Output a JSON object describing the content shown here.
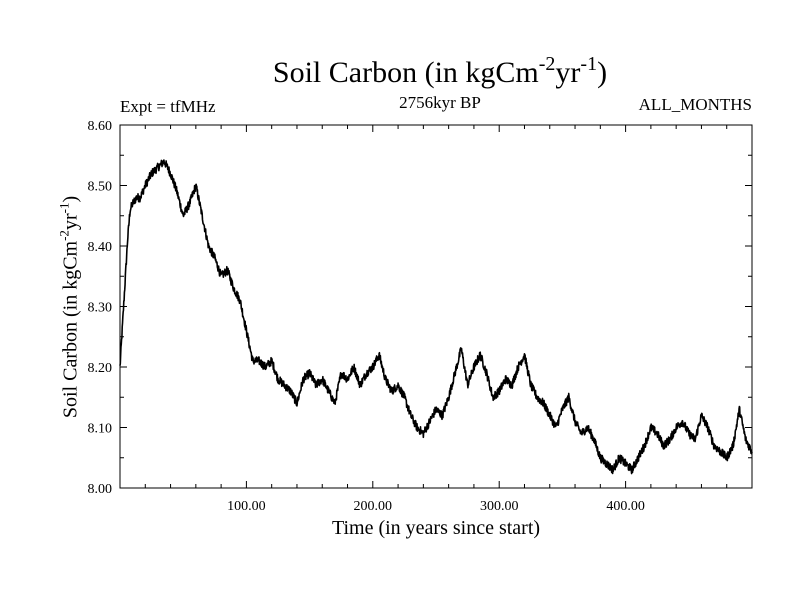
{
  "chart": {
    "title_main": "Soil Carbon (in kgCm",
    "title_sup1": "-2",
    "title_mid": "yr",
    "title_sup2": "-1",
    "title_end": ")",
    "expt_label": "Expt = tfMHz",
    "subtitle": "2756kyr BP",
    "months_label": "ALL_MONTHS",
    "xlabel": "Time (in years since start)",
    "ylabel_main": "Soil Carbon (in kgCm",
    "ylabel_sup1": "-2",
    "ylabel_mid": "yr",
    "ylabel_sup2": "-1",
    "ylabel_end": ")"
  },
  "chart_data": {
    "type": "line",
    "title": "Soil Carbon (in kgCm-2yr-1)",
    "subtitle": "2756kyr BP",
    "xlabel": "Time (in years since start)",
    "ylabel": "Soil Carbon (in kgCm-2yr-1)",
    "xlim": [
      0,
      500
    ],
    "ylim": [
      8.0,
      8.6
    ],
    "xticks": [
      100,
      200,
      300,
      400
    ],
    "xtick_labels": [
      "100.00",
      "200.00",
      "300.00",
      "400.00"
    ],
    "yticks": [
      8.0,
      8.1,
      8.2,
      8.3,
      8.4,
      8.5,
      8.6
    ],
    "ytick_labels": [
      "8.00",
      "8.10",
      "8.20",
      "8.30",
      "8.40",
      "8.50",
      "8.60"
    ],
    "grid": false,
    "series": [
      {
        "color": "#000000",
        "x": [
          0,
          2,
          4,
          6,
          8,
          10,
          13,
          16,
          20,
          25,
          30,
          35,
          40,
          45,
          50,
          55,
          60,
          65,
          70,
          75,
          80,
          85,
          90,
          95,
          100,
          105,
          110,
          115,
          120,
          125,
          130,
          135,
          140,
          145,
          150,
          155,
          160,
          165,
          170,
          175,
          180,
          185,
          190,
          195,
          200,
          205,
          210,
          215,
          220,
          225,
          230,
          235,
          240,
          245,
          250,
          255,
          260,
          265,
          270,
          275,
          280,
          285,
          290,
          295,
          300,
          305,
          310,
          315,
          320,
          325,
          330,
          335,
          340,
          345,
          350,
          355,
          360,
          365,
          370,
          375,
          380,
          385,
          390,
          395,
          400,
          405,
          410,
          415,
          420,
          425,
          430,
          435,
          440,
          445,
          450,
          455,
          460,
          465,
          470,
          475,
          480,
          485,
          490,
          495,
          500
        ],
        "values": [
          8.2,
          8.27,
          8.34,
          8.41,
          8.46,
          8.47,
          8.48,
          8.48,
          8.5,
          8.52,
          8.53,
          8.54,
          8.52,
          8.49,
          8.45,
          8.47,
          8.5,
          8.45,
          8.4,
          8.38,
          8.35,
          8.36,
          8.33,
          8.31,
          8.26,
          8.21,
          8.21,
          8.2,
          8.21,
          8.18,
          8.17,
          8.16,
          8.14,
          8.18,
          8.19,
          8.17,
          8.18,
          8.16,
          8.14,
          8.19,
          8.18,
          8.2,
          8.17,
          8.19,
          8.2,
          8.22,
          8.18,
          8.16,
          8.17,
          8.15,
          8.12,
          8.1,
          8.09,
          8.11,
          8.13,
          8.12,
          8.15,
          8.19,
          8.23,
          8.17,
          8.2,
          8.22,
          8.19,
          8.15,
          8.16,
          8.18,
          8.17,
          8.2,
          8.22,
          8.17,
          8.15,
          8.14,
          8.12,
          8.1,
          8.13,
          8.15,
          8.11,
          8.09,
          8.1,
          8.08,
          8.05,
          8.04,
          8.03,
          8.05,
          8.04,
          8.03,
          8.05,
          8.07,
          8.1,
          8.09,
          8.07,
          8.08,
          8.1,
          8.11,
          8.09,
          8.08,
          8.12,
          8.1,
          8.07,
          8.06,
          8.05,
          8.07,
          8.13,
          8.08,
          8.06
        ]
      }
    ]
  }
}
